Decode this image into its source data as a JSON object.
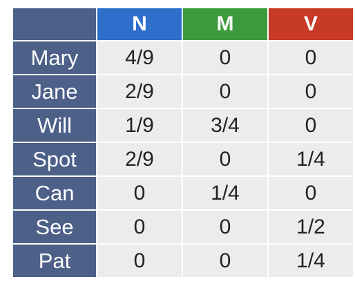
{
  "table": {
    "columns": [
      {
        "label": "N",
        "color": "#2f6fcc"
      },
      {
        "label": "M",
        "color": "#3c9a3c"
      },
      {
        "label": "V",
        "color": "#c63a26"
      }
    ],
    "rows": [
      {
        "label": "Mary",
        "values": [
          "4/9",
          "0",
          "0"
        ]
      },
      {
        "label": "Jane",
        "values": [
          "2/9",
          "0",
          "0"
        ]
      },
      {
        "label": "Will",
        "values": [
          "1/9",
          "3/4",
          "0"
        ]
      },
      {
        "label": "Spot",
        "values": [
          "2/9",
          "0",
          "1/4"
        ]
      },
      {
        "label": "Can",
        "values": [
          "0",
          "1/4",
          "0"
        ]
      },
      {
        "label": "See",
        "values": [
          "0",
          "0",
          "1/2"
        ]
      },
      {
        "label": "Pat",
        "values": [
          "0",
          "0",
          "1/4"
        ]
      }
    ]
  }
}
